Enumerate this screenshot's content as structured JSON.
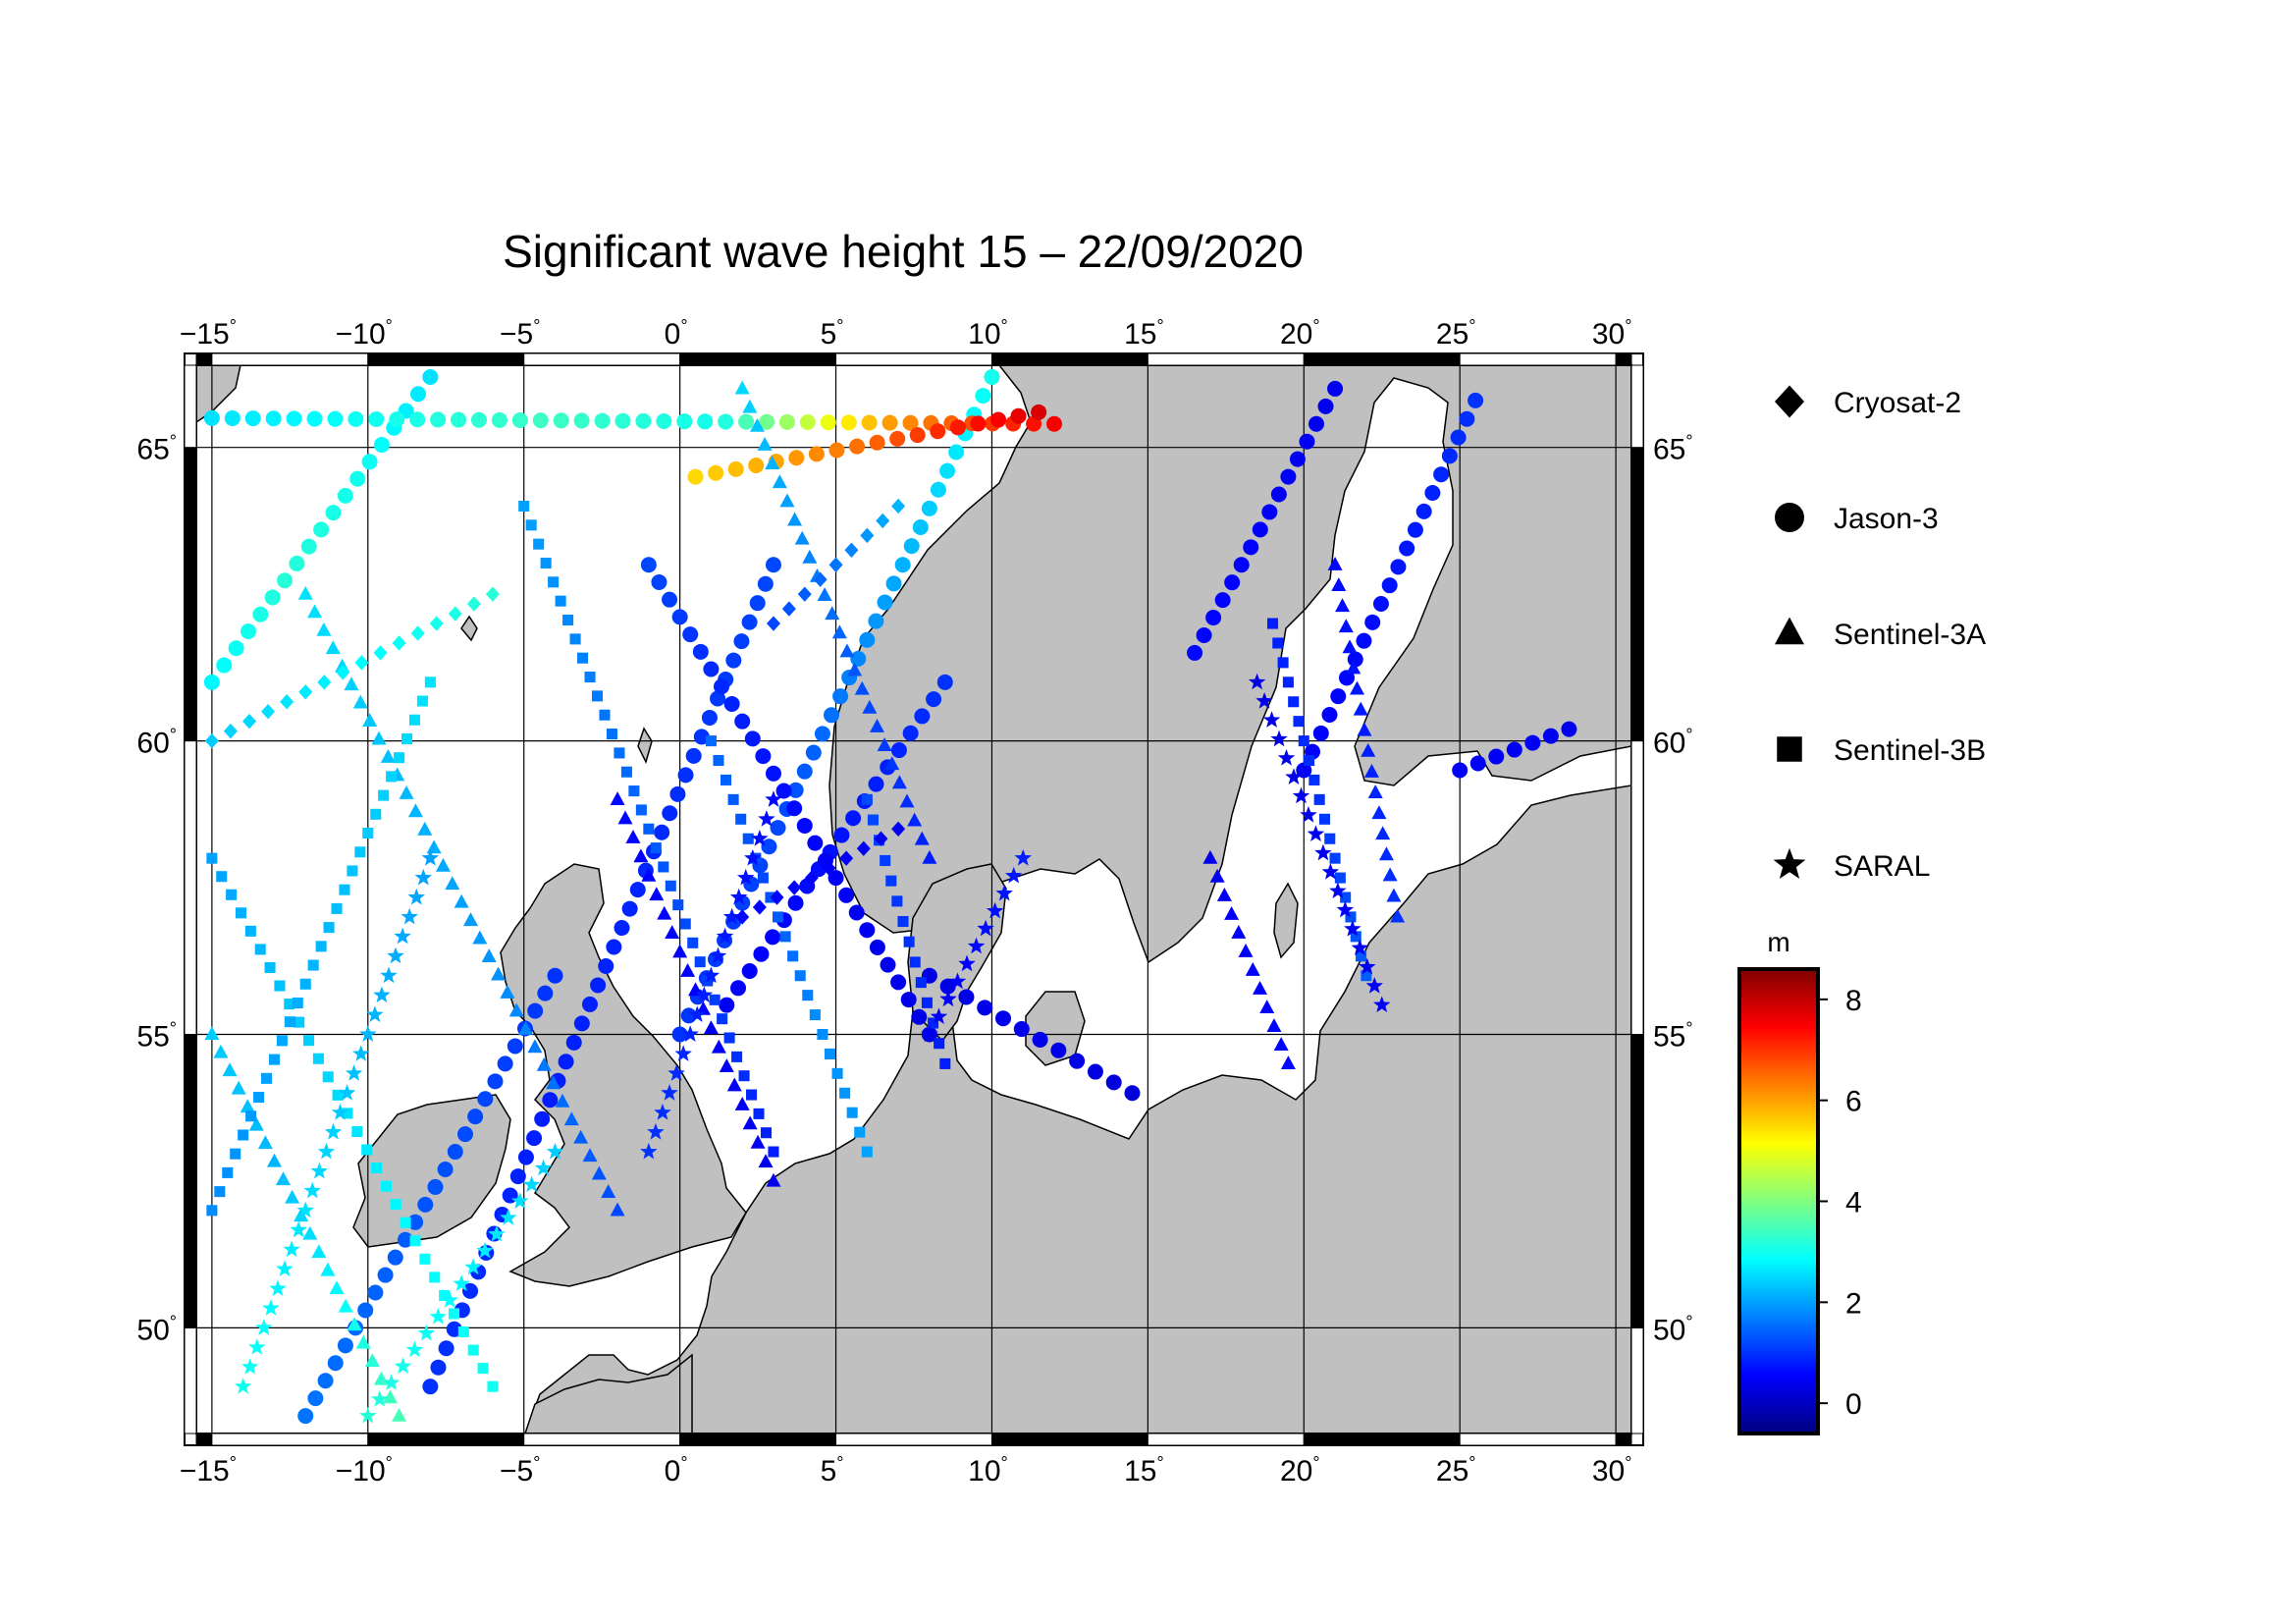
{
  "title": "Significant wave height 15 – 22/09/2020",
  "map": {
    "lon_range": [
      -15.5,
      30.5
    ],
    "lat_range": [
      48.2,
      66.4
    ],
    "lon_ticks": [
      {
        "value": -15,
        "label": "-15"
      },
      {
        "value": -10,
        "label": "-10"
      },
      {
        "value": -5,
        "label": "-5"
      },
      {
        "value": 0,
        "label": "0"
      },
      {
        "value": 5,
        "label": "5"
      },
      {
        "value": 10,
        "label": "10"
      },
      {
        "value": 15,
        "label": "15"
      },
      {
        "value": 20,
        "label": "20"
      },
      {
        "value": 25,
        "label": "25"
      },
      {
        "value": 30,
        "label": "30"
      }
    ],
    "lat_ticks": [
      {
        "value": 50,
        "label": "50"
      },
      {
        "value": 55,
        "label": "55"
      },
      {
        "value": 60,
        "label": "60"
      },
      {
        "value": 65,
        "label": "65"
      }
    ],
    "degree_symbol": "°",
    "grid": true,
    "land_color": "#c0c0c0",
    "sea_color": "#ffffff"
  },
  "legend": {
    "items": [
      {
        "label": "Cryosat-2",
        "symbol": "diamond"
      },
      {
        "label": "Jason-3",
        "symbol": "circle"
      },
      {
        "label": "Sentinel-3A",
        "symbol": "triangle"
      },
      {
        "label": "Sentinel-3B",
        "symbol": "square"
      },
      {
        "label": "SARAL",
        "symbol": "star"
      }
    ]
  },
  "colorbar": {
    "unit": "m",
    "min": -0.6,
    "max": 8.6,
    "ticks": [
      {
        "value": 0,
        "label": "0"
      },
      {
        "value": 2,
        "label": "2"
      },
      {
        "value": 4,
        "label": "4"
      },
      {
        "value": 6,
        "label": "6"
      },
      {
        "value": 8,
        "label": "8"
      }
    ],
    "colormap": "jet"
  },
  "chart_data": {
    "type": "scatter",
    "title": "Significant wave height 15 – 22/09/2020",
    "xlabel": "",
    "ylabel": "",
    "xlim": [
      -15.5,
      30.5
    ],
    "ylim": [
      48.2,
      66.4
    ],
    "value_unit": "m",
    "series": [
      {
        "name": "Jason-3",
        "symbol": "circle",
        "tracks": [
          {
            "from": [
              -15.0,
              61.0
            ],
            "to": [
              -8.0,
              66.2
            ],
            "hs": [
              2.8,
              3.2,
              3.0,
              2.6
            ]
          },
          {
            "from": [
              -12.0,
              48.5
            ],
            "to": [
              -4.0,
              56.0
            ],
            "hs": [
              1.6,
              1.4,
              1.2,
              1.0
            ]
          },
          {
            "from": [
              -8.0,
              49.0
            ],
            "to": [
              3.0,
              63.0
            ],
            "hs": [
              1.0,
              0.8,
              0.9,
              1.2
            ]
          },
          {
            "from": [
              0.0,
              55.0
            ],
            "to": [
              10.0,
              66.2
            ],
            "hs": [
              1.0,
              1.2,
              2.0,
              3.0
            ]
          },
          {
            "from": [
              1.5,
              55.5
            ],
            "to": [
              8.5,
              61.0
            ],
            "hs": [
              0.5,
              0.6,
              0.8,
              1.0
            ]
          },
          {
            "from": [
              -1.0,
              63.0
            ],
            "to": [
              8.0,
              55.0
            ],
            "hs": [
              1.2,
              0.8,
              0.5,
              0.3
            ]
          },
          {
            "from": [
              -15.0,
              65.5
            ],
            "to": [
              12.0,
              65.4
            ],
            "hs": [
              2.6,
              3.0,
              3.4,
              3.0,
              6.0,
              7.5
            ]
          },
          {
            "from": [
              0.5,
              64.5
            ],
            "to": [
              11.5,
              65.6
            ],
            "hs": [
              5.5,
              6.0,
              6.5,
              7.2,
              7.8
            ]
          },
          {
            "from": [
              8.0,
              56.0
            ],
            "to": [
              14.5,
              54.0
            ],
            "hs": [
              0.3,
              0.4,
              0.2
            ]
          },
          {
            "from": [
              16.5,
              61.5
            ],
            "to": [
              21.0,
              66.0
            ],
            "hs": [
              0.6,
              0.5,
              0.4
            ]
          },
          {
            "from": [
              20.0,
              59.5
            ],
            "to": [
              25.5,
              65.8
            ],
            "hs": [
              0.5,
              0.6,
              0.8,
              1.0
            ]
          },
          {
            "from": [
              25.0,
              59.5
            ],
            "to": [
              28.5,
              60.2
            ],
            "hs": [
              0.5,
              0.4
            ]
          }
        ]
      },
      {
        "name": "Sentinel-3A",
        "symbol": "triangle",
        "tracks": [
          {
            "from": [
              -15.0,
              55.0
            ],
            "to": [
              -9.0,
              48.5
            ],
            "hs": [
              2.4,
              2.2,
              2.8,
              3.5
            ]
          },
          {
            "from": [
              -12.0,
              62.5
            ],
            "to": [
              -2.0,
              52.0
            ],
            "hs": [
              2.6,
              2.2,
              1.8,
              1.2
            ]
          },
          {
            "from": [
              2.0,
              66.0
            ],
            "to": [
              8.0,
              58.0
            ],
            "hs": [
              2.5,
              1.8,
              1.2,
              0.8
            ]
          },
          {
            "from": [
              -2.0,
              59.0
            ],
            "to": [
              3.0,
              52.5
            ],
            "hs": [
              0.6,
              0.5,
              0.4
            ]
          },
          {
            "from": [
              17.0,
              58.0
            ],
            "to": [
              19.5,
              54.5
            ],
            "hs": [
              0.4,
              0.5,
              0.6
            ]
          },
          {
            "from": [
              21.0,
              63.0
            ],
            "to": [
              23.0,
              57.0
            ],
            "hs": [
              0.6,
              0.8,
              1.0
            ]
          }
        ]
      },
      {
        "name": "Sentinel-3B",
        "symbol": "square",
        "tracks": [
          {
            "from": [
              -15.0,
              58.0
            ],
            "to": [
              -6.0,
              49.0
            ],
            "hs": [
              2.0,
              2.4,
              2.8,
              3.0
            ]
          },
          {
            "from": [
              -15.0,
              52.0
            ],
            "to": [
              -8.0,
              61.0
            ],
            "hs": [
              1.8,
              2.2,
              2.6
            ]
          },
          {
            "from": [
              -5.0,
              64.0
            ],
            "to": [
              3.0,
              53.0
            ],
            "hs": [
              2.0,
              1.6,
              1.2,
              0.8
            ]
          },
          {
            "from": [
              1.0,
              60.0
            ],
            "to": [
              6.0,
              53.0
            ],
            "hs": [
              1.5,
              1.2,
              1.8,
              2.0
            ]
          },
          {
            "from": [
              6.0,
              59.0
            ],
            "to": [
              8.5,
              54.5
            ],
            "hs": [
              1.2,
              1.0,
              0.8
            ]
          },
          {
            "from": [
              19.0,
              62.0
            ],
            "to": [
              22.0,
              56.0
            ],
            "hs": [
              0.8,
              1.0,
              1.4
            ]
          }
        ]
      },
      {
        "name": "SARAL",
        "symbol": "star",
        "tracks": [
          {
            "from": [
              -14.0,
              49.0
            ],
            "to": [
              -8.0,
              58.0
            ],
            "hs": [
              3.0,
              2.6,
              2.2,
              2.0
            ]
          },
          {
            "from": [
              -10.0,
              48.5
            ],
            "to": [
              -4.0,
              53.0
            ],
            "hs": [
              3.2,
              2.8,
              2.4
            ]
          },
          {
            "from": [
              -1.0,
              53.0
            ],
            "to": [
              3.0,
              59.0
            ],
            "hs": [
              1.0,
              0.8,
              0.6
            ]
          },
          {
            "from": [
              8.0,
              55.0
            ],
            "to": [
              11.0,
              58.0
            ],
            "hs": [
              0.4,
              0.6,
              0.8
            ]
          },
          {
            "from": [
              18.5,
              61.0
            ],
            "to": [
              22.5,
              55.5
            ],
            "hs": [
              0.3,
              0.4,
              0.5
            ]
          }
        ]
      },
      {
        "name": "Cryosat-2",
        "symbol": "diamond",
        "tracks": [
          {
            "from": [
              -15.0,
              60.0
            ],
            "to": [
              -6.0,
              62.5
            ],
            "hs": [
              2.4,
              2.8,
              3.2
            ]
          },
          {
            "from": [
              3.0,
              62.0
            ],
            "to": [
              7.0,
              64.0
            ],
            "hs": [
              1.2,
              1.6,
              2.2
            ]
          },
          {
            "from": [
              2.0,
              57.0
            ],
            "to": [
              7.0,
              58.5
            ],
            "hs": [
              0.6,
              0.5,
              0.4
            ]
          }
        ]
      }
    ]
  }
}
